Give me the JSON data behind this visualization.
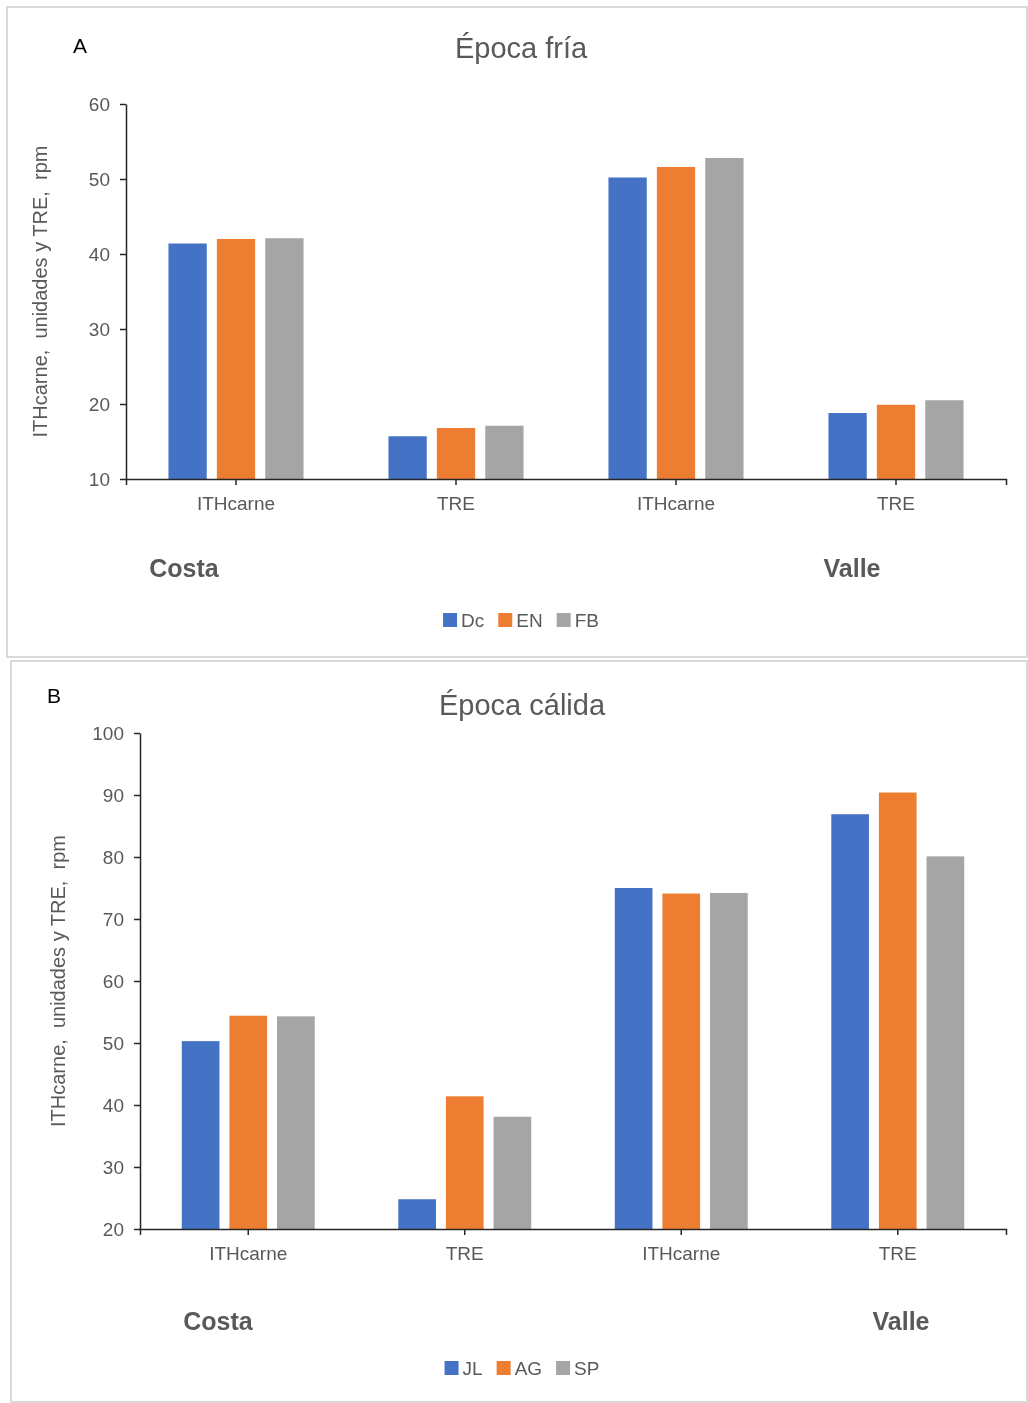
{
  "chart_data": [
    {
      "type": "bar",
      "title": "Época fría",
      "ylabel": "ITHcarne,  unidades y TRE,  rpm",
      "categories": [
        "ITHcarne",
        "TRE",
        "ITHcarne",
        "TRE"
      ],
      "series": [
        {
          "name": "Dc",
          "color": "#4472c4",
          "values": [
            41.4,
            15.7,
            50.2,
            18.8
          ]
        },
        {
          "name": "EN",
          "color": "#ed7d31",
          "values": [
            42.0,
            16.8,
            51.6,
            19.9
          ]
        },
        {
          "name": "FB",
          "color": "#a5a5a5",
          "values": [
            42.1,
            17.1,
            52.8,
            20.5
          ]
        }
      ],
      "ylim": [
        10,
        60
      ],
      "yticks": [
        10,
        20,
        30,
        40,
        50,
        60
      ],
      "legend": "bottom",
      "annotations": [
        "A",
        "Costa",
        "Valle"
      ]
    },
    {
      "type": "bar",
      "title": "Época cálida",
      "ylabel": "ITHcarne,  unidades y TRE,  rpm",
      "categories": [
        "ITHcarne",
        "TRE",
        "ITHcarne",
        "TRE"
      ],
      "series": [
        {
          "name": "JL",
          "color": "#4472c4",
          "values": [
            50.3,
            24.8,
            75.0,
            86.9
          ]
        },
        {
          "name": "AG",
          "color": "#ed7d31",
          "values": [
            54.4,
            41.4,
            74.1,
            90.4
          ]
        },
        {
          "name": "SP",
          "color": "#a5a5a5",
          "values": [
            54.3,
            38.1,
            74.2,
            80.1
          ]
        }
      ],
      "ylim": [
        20,
        100
      ],
      "yticks": [
        20,
        30,
        40,
        50,
        60,
        70,
        80,
        90,
        100
      ],
      "legend": "bottom",
      "annotations": [
        "B",
        "Costa",
        "Valle"
      ]
    }
  ]
}
